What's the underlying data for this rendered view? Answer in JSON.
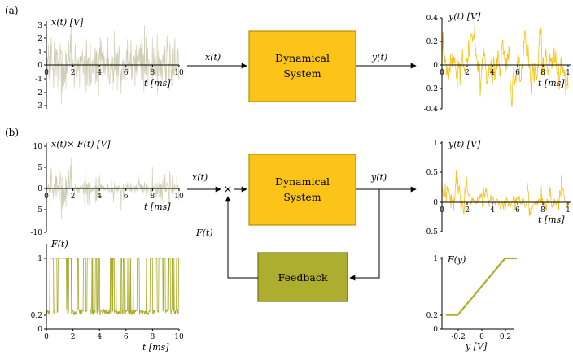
{
  "panels": {
    "a": "(a)",
    "b": "(b)"
  },
  "blocks": {
    "system_line1": "Dynamical",
    "system_line2": "System",
    "feedback": "Feedback"
  },
  "signals": {
    "x_in": "x(t)",
    "y_out": "y(t)",
    "f_in": "F(t)",
    "multiply": "×"
  },
  "colors": {
    "system_fill": "#fcc419",
    "system_edge": "#c08a00",
    "feedback_fill": "#adad2f",
    "feedback_edge": "#6e6e12",
    "input_trace": "#cdcfb4",
    "output_trace": "#f6c21b",
    "feedback_trace": "#a8aa2a",
    "fcurve": "#adad2f"
  },
  "plots": {
    "a_x": {
      "ylabel": "x(t) [V]",
      "xlabel": "t [ms]",
      "yticks": [
        "3",
        "2",
        "1",
        "0",
        "-1",
        "-2",
        "-3"
      ],
      "xticks": [
        "0",
        "2",
        "4",
        "6",
        "8",
        "10"
      ]
    },
    "a_y": {
      "ylabel": "y(t) [V]",
      "xlabel": "t [ms]",
      "yticks": [
        "0.4",
        "0.2",
        "0",
        "-0.2",
        "-0.4"
      ],
      "xticks": [
        "0",
        "2",
        "4",
        "6",
        "8",
        "1"
      ]
    },
    "b_x": {
      "ylabel": "x(t)× F(t) [V]",
      "xlabel": "t [ms]",
      "yticks": [
        "10",
        "5",
        "0",
        "-5",
        "-10"
      ],
      "xticks": [
        "0",
        "2",
        "4",
        "6",
        "8",
        "10"
      ]
    },
    "b_y": {
      "ylabel": "y(t) [V]",
      "xlabel": "t [ms]",
      "yticks": [
        "1",
        "0.5",
        "0",
        "-0.5"
      ],
      "xticks": [
        "0",
        "2",
        "4",
        "6",
        "8",
        "1"
      ]
    },
    "b_f": {
      "ylabel": "F(t)",
      "xlabel": "t [ms]",
      "yticks": [
        "1",
        "0.2",
        "0"
      ],
      "xticks": [
        "0",
        "2",
        "4",
        "6",
        "8",
        "10"
      ]
    },
    "b_fy": {
      "ylabel": "F(y)",
      "xlabel": "y [V]",
      "yticks": [
        "1",
        "0.2",
        "0"
      ],
      "xticks": [
        "-0.2",
        "0",
        "0.2"
      ]
    }
  },
  "chart_data": {
    "type": "line",
    "title": "",
    "series": [
      {
        "name": "F(y)",
        "x": [
          -0.3,
          -0.2,
          0.2,
          0.3
        ],
        "y": [
          0.2,
          0.2,
          1,
          1
        ]
      }
    ],
    "xlim": [
      -0.3,
      0.3
    ],
    "ylim": [
      0,
      1
    ],
    "xlabel": "y [V]",
    "ylabel": "F(y)"
  }
}
